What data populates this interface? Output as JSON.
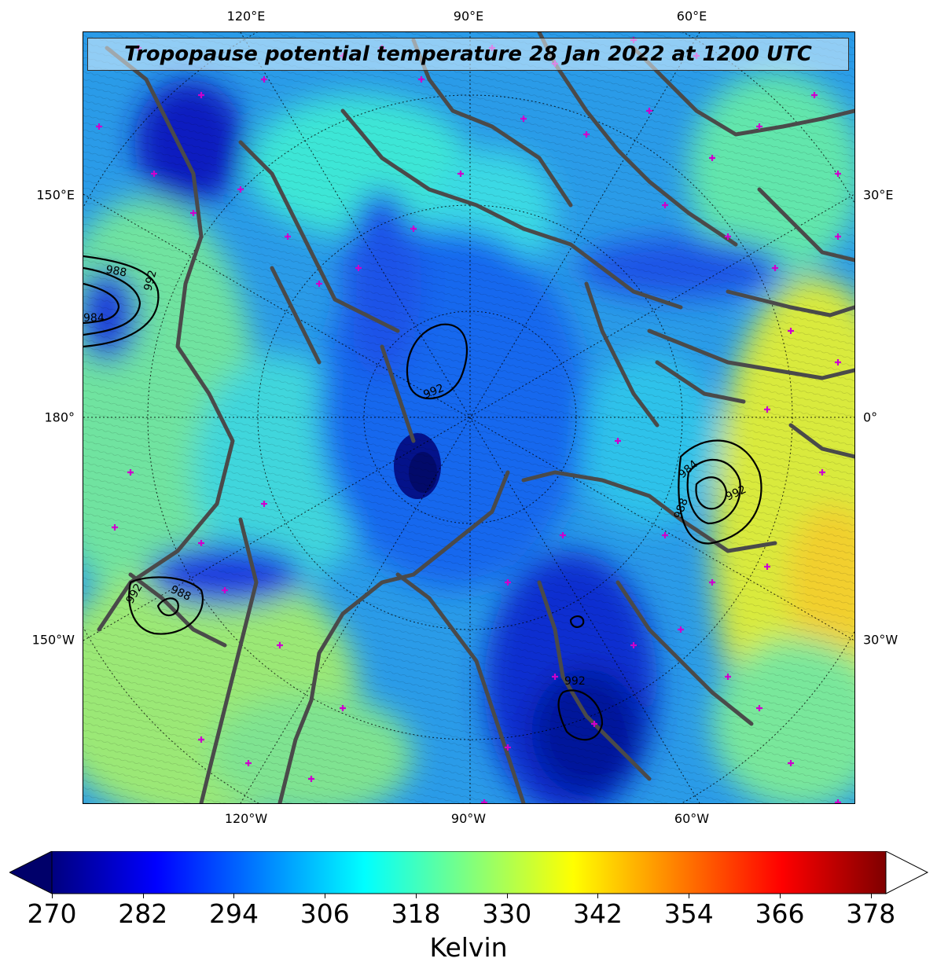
{
  "title": "Tropopause potential temperature 28 Jan 2022 at 1200 UTC",
  "longitude_labels": {
    "top": [
      "120°E",
      "90°E",
      "60°E"
    ],
    "bottom": [
      "120°W",
      "90°W",
      "60°W"
    ],
    "left": [
      "150°E",
      "180°",
      "150°W"
    ],
    "right": [
      "30°E",
      "0°",
      "30°W"
    ]
  },
  "pressure_contour_labels": [
    "992",
    "988",
    "984",
    "992",
    "984",
    "988",
    "992",
    "992",
    "988",
    "992"
  ],
  "colorbar": {
    "label": "Kelvin",
    "ticks": [
      "270",
      "282",
      "294",
      "306",
      "318",
      "330",
      "342",
      "354",
      "366",
      "378"
    ],
    "min": 270,
    "max": 380,
    "extend": "both",
    "colormap": "jet",
    "colors": [
      "#00007f",
      "#0000ff",
      "#007fff",
      "#00ffff",
      "#7fff7f",
      "#ffff00",
      "#ff7f00",
      "#ff0000",
      "#7f0000"
    ]
  },
  "colors": {
    "coastline": "#4a4a4a",
    "pressure_contour": "#000000",
    "station_marker": "#cc00cc",
    "graticule": "#000000"
  }
}
